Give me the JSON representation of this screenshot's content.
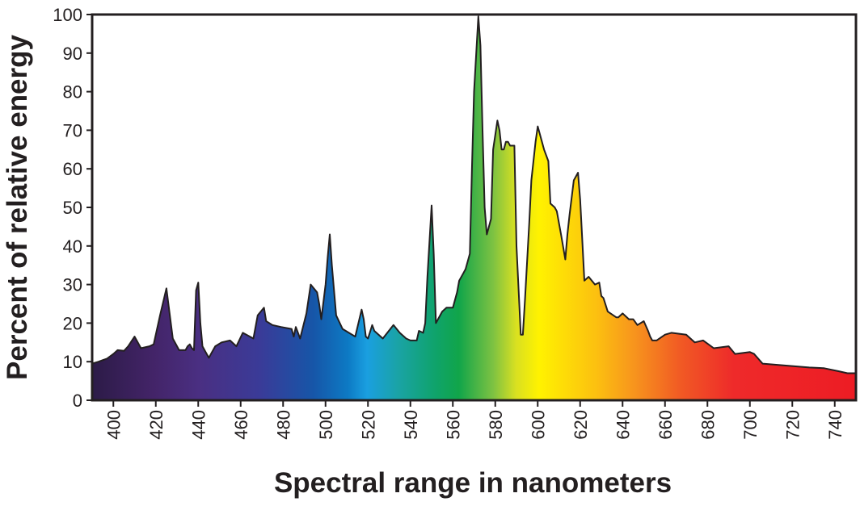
{
  "chart_data": {
    "type": "area",
    "title": "",
    "xlabel": "Spectral range in nanometers",
    "ylabel": "Percent of relative energy",
    "xlim": [
      390,
      750
    ],
    "ylim": [
      0,
      100
    ],
    "x_ticks": [
      400,
      420,
      440,
      460,
      480,
      500,
      520,
      540,
      560,
      580,
      600,
      620,
      640,
      660,
      680,
      700,
      720,
      740
    ],
    "y_ticks": [
      0,
      10,
      20,
      30,
      40,
      50,
      60,
      70,
      80,
      90,
      100
    ],
    "grid": false,
    "legend": "none",
    "fill": "visible-spectrum gradient (violet to red)",
    "series": [
      {
        "x": [
          390,
          393,
          397,
          400,
          402,
          405,
          407,
          410,
          413,
          417,
          419,
          422,
          425,
          428,
          431,
          434,
          435,
          436,
          437,
          438,
          439,
          440,
          441,
          442,
          443,
          445,
          448,
          451,
          455,
          458,
          461,
          466,
          468,
          471,
          472,
          475,
          479,
          484,
          485,
          486,
          488,
          491,
          493,
          496,
          497,
          498,
          500,
          501,
          502,
          503,
          505,
          508,
          514,
          517,
          518,
          519,
          520,
          522,
          523,
          527,
          532,
          535,
          538,
          540,
          543,
          544,
          546,
          547,
          548,
          550,
          551,
          552,
          555,
          557,
          560,
          562,
          563,
          565,
          566,
          568,
          569,
          570,
          572,
          573,
          574,
          575,
          576,
          578,
          579,
          581,
          582,
          583,
          584,
          585,
          586,
          587,
          589,
          590,
          592,
          593,
          594,
          596,
          597,
          599,
          600,
          602,
          603,
          605,
          606,
          608,
          609,
          611,
          613,
          614,
          615,
          617,
          619,
          620,
          622,
          624,
          627,
          629,
          630,
          631,
          633,
          637,
          638,
          640,
          643,
          645,
          647,
          650,
          652,
          653,
          654,
          656,
          660,
          663,
          670,
          674,
          678,
          683,
          690,
          693,
          700,
          702,
          706,
          728,
          735,
          742,
          746,
          750
        ],
        "y": [
          9.5,
          10.0,
          10.8,
          12.0,
          13.0,
          12.8,
          14.0,
          16.5,
          13.5,
          14.0,
          14.5,
          22.0,
          29.0,
          16.0,
          13.0,
          13.0,
          14.0,
          14.5,
          13.5,
          13.0,
          28.5,
          30.5,
          20.0,
          14.0,
          13.0,
          11.0,
          14.0,
          15.0,
          15.5,
          14.0,
          17.5,
          16.0,
          22.0,
          24.0,
          20.5,
          19.5,
          19.0,
          18.5,
          16.5,
          19.0,
          16.0,
          22.5,
          30.0,
          28.0,
          25.0,
          21.0,
          30.0,
          37.0,
          43.0,
          35.0,
          22.0,
          18.5,
          16.5,
          23.5,
          21.0,
          16.5,
          16.0,
          19.5,
          18.0,
          16.0,
          19.5,
          17.5,
          16.0,
          15.5,
          15.5,
          18.0,
          17.5,
          20.0,
          32.0,
          50.5,
          38.0,
          20.0,
          23.0,
          24.0,
          24.0,
          28.0,
          31.0,
          33.0,
          34.0,
          38.0,
          60.0,
          80.0,
          99.5,
          92.0,
          70.0,
          50.0,
          43.0,
          47.0,
          65.0,
          72.5,
          70.0,
          65.0,
          65.0,
          67.0,
          67.0,
          66.0,
          66.0,
          40.0,
          17.0,
          17.0,
          26.0,
          46.0,
          57.0,
          67.0,
          71.0,
          67.0,
          65.0,
          62.0,
          51.0,
          50.0,
          49.0,
          43.0,
          36.5,
          43.0,
          48.0,
          57.0,
          59.0,
          52.0,
          31.0,
          32.0,
          30.0,
          30.5,
          27.0,
          26.5,
          23.0,
          21.5,
          21.5,
          22.5,
          21.0,
          21.0,
          19.5,
          20.5,
          18.0,
          16.5,
          15.5,
          15.5,
          17.0,
          17.5,
          17.0,
          15.0,
          15.5,
          13.5,
          14.0,
          12.0,
          12.5,
          12.0,
          9.5,
          8.5,
          8.3,
          7.5,
          7.0,
          7.0
        ]
      }
    ]
  }
}
